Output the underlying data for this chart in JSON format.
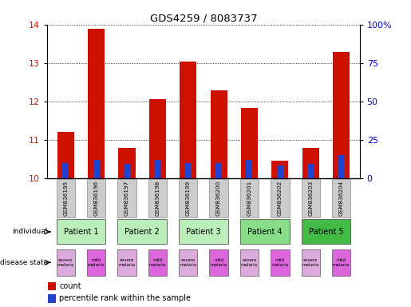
{
  "title": "GDS4259 / 8083737",
  "samples": [
    "GSM836195",
    "GSM836196",
    "GSM836197",
    "GSM836198",
    "GSM836199",
    "GSM836200",
    "GSM836201",
    "GSM836202",
    "GSM836203",
    "GSM836204"
  ],
  "red_values": [
    11.2,
    13.88,
    10.78,
    12.05,
    13.03,
    12.28,
    11.82,
    10.45,
    10.78,
    13.28
  ],
  "blue_values_pct": [
    10,
    12,
    9,
    12,
    10,
    10,
    12,
    8,
    9,
    15
  ],
  "y_min": 10,
  "y_max": 14,
  "y_ticks_left": [
    10,
    11,
    12,
    13,
    14
  ],
  "y_ticks_right_labels": [
    "0",
    "25",
    "50",
    "75",
    "100%"
  ],
  "patients": [
    {
      "label": "Patient 1",
      "cols": [
        0,
        1
      ],
      "color": "#bbeebb"
    },
    {
      "label": "Patient 2",
      "cols": [
        2,
        3
      ],
      "color": "#bbeebb"
    },
    {
      "label": "Patient 3",
      "cols": [
        4,
        5
      ],
      "color": "#bbeebb"
    },
    {
      "label": "Patient 4",
      "cols": [
        6,
        7
      ],
      "color": "#88dd88"
    },
    {
      "label": "Patient 5",
      "cols": [
        8,
        9
      ],
      "color": "#44bb44"
    }
  ],
  "disease_severe_color": "#ddaadd",
  "disease_mild_color": "#dd66dd",
  "bar_color_red": "#cc1100",
  "bar_color_blue": "#2244cc",
  "bar_width": 0.55,
  "background_color": "#ffffff",
  "tick_color_left": "#cc1100",
  "tick_color_right": "#0000cc",
  "gsm_bg_color": "#cccccc"
}
